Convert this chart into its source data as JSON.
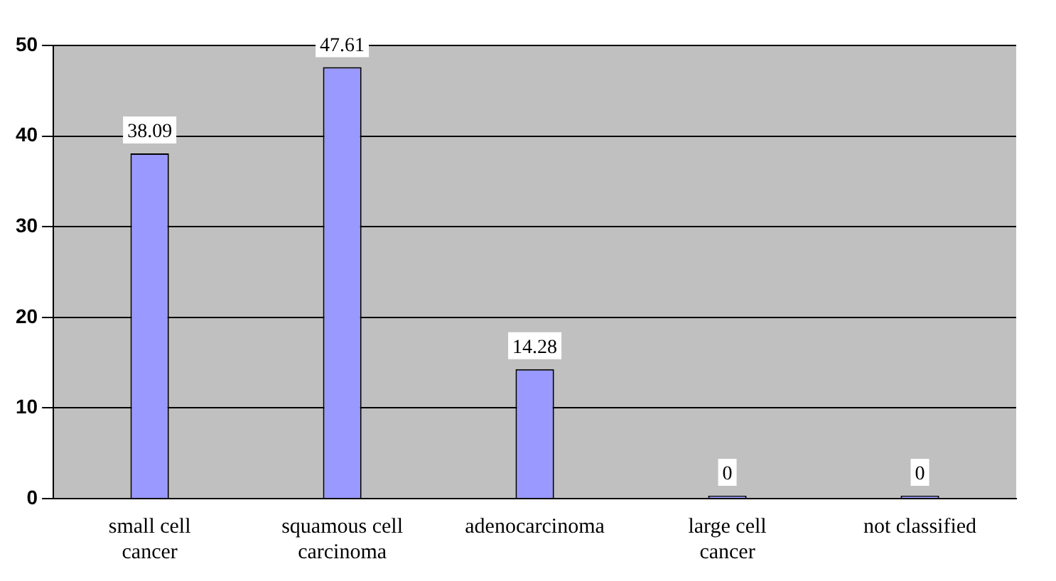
{
  "chart_data": {
    "type": "bar",
    "categories": [
      "small cell cancer",
      "squamous cell carcinoma",
      "adenocarcinoma",
      "large cell cancer",
      "not classified"
    ],
    "values": [
      38.09,
      47.61,
      14.28,
      0,
      0
    ],
    "color": "#9999ff",
    "ylim": [
      0,
      50
    ],
    "yticks": [
      0,
      10,
      20,
      30,
      40,
      50
    ],
    "grid": "y",
    "data_labels": true
  }
}
